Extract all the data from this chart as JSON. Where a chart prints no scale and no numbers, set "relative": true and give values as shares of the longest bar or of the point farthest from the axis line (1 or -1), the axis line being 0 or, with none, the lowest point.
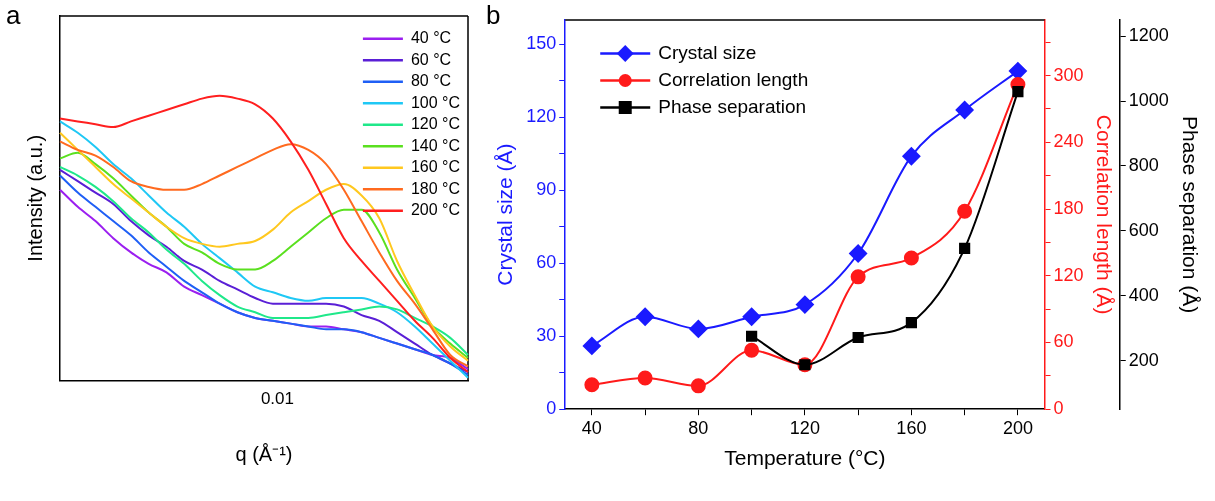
{
  "chart_data": [
    {
      "type": "line",
      "annotations": [
        "a",
        "0.01"
      ],
      "xlabel": "q (Å⁻¹)",
      "ylabel": "Intensity (a.u.)",
      "relative": true,
      "legend": "top right",
      "marker": "none",
      "line_style": "solid",
      "categories": [
        null,
        null,
        null,
        null,
        null,
        null,
        null,
        null,
        null,
        null,
        null,
        null,
        null,
        null,
        null,
        null,
        null,
        null,
        null,
        null,
        null,
        null,
        null,
        null
      ],
      "series": [
        {
          "name": "40 °C",
          "color": "#9b1ff0",
          "values": [
            0.67,
            0.61,
            0.56,
            0.5,
            0.45,
            0.41,
            0.38,
            0.33,
            0.3,
            0.27,
            0.24,
            0.22,
            0.21,
            0.2,
            0.19,
            0.19,
            0.18,
            0.17,
            0.15,
            0.13,
            0.11,
            0.09,
            0.08,
            0.04
          ]
        },
        {
          "name": "60 °C",
          "color": "#5a1fd6",
          "values": [
            0.74,
            0.7,
            0.66,
            0.62,
            0.56,
            0.51,
            0.47,
            0.42,
            0.39,
            0.35,
            0.32,
            0.29,
            0.27,
            0.27,
            0.27,
            0.27,
            0.26,
            0.23,
            0.21,
            0.17,
            0.13,
            0.09,
            0.06,
            0.03
          ]
        },
        {
          "name": "80 °C",
          "color": "#1f5ff5",
          "values": [
            0.72,
            0.66,
            0.61,
            0.56,
            0.51,
            0.45,
            0.4,
            0.35,
            0.31,
            0.27,
            0.24,
            0.22,
            0.21,
            0.2,
            0.19,
            0.18,
            0.18,
            0.17,
            0.15,
            0.13,
            0.11,
            0.09,
            0.06,
            0.02
          ]
        },
        {
          "name": "100 °C",
          "color": "#1fc8f5",
          "values": [
            0.91,
            0.87,
            0.82,
            0.76,
            0.71,
            0.65,
            0.59,
            0.54,
            0.48,
            0.43,
            0.38,
            0.33,
            0.31,
            0.29,
            0.28,
            0.29,
            0.29,
            0.29,
            0.27,
            0.24,
            0.19,
            0.13,
            0.07,
            0.01
          ]
        },
        {
          "name": "120 °C",
          "color": "#1fe88a",
          "values": [
            0.75,
            0.72,
            0.68,
            0.63,
            0.57,
            0.52,
            0.46,
            0.41,
            0.35,
            0.3,
            0.26,
            0.24,
            0.22,
            0.22,
            0.22,
            0.23,
            0.24,
            0.25,
            0.26,
            0.25,
            0.22,
            0.19,
            0.15,
            0.09
          ]
        },
        {
          "name": "140 °C",
          "color": "#5ae01f",
          "values": [
            0.78,
            0.8,
            0.76,
            0.71,
            0.65,
            0.59,
            0.54,
            0.48,
            0.45,
            0.41,
            0.39,
            0.39,
            0.42,
            0.47,
            0.52,
            0.57,
            0.6,
            0.6,
            0.52,
            0.39,
            0.29,
            0.19,
            0.13,
            0.08
          ]
        },
        {
          "name": "160 °C",
          "color": "#ffc81f",
          "values": [
            0.87,
            0.81,
            0.75,
            0.69,
            0.64,
            0.59,
            0.54,
            0.5,
            0.48,
            0.47,
            0.48,
            0.49,
            0.53,
            0.59,
            0.63,
            0.67,
            0.69,
            0.65,
            0.57,
            0.42,
            0.3,
            0.19,
            0.12,
            0.07
          ]
        },
        {
          "name": "180 °C",
          "color": "#ff6a1f",
          "values": [
            0.84,
            0.81,
            0.79,
            0.75,
            0.7,
            0.68,
            0.67,
            0.67,
            0.69,
            0.72,
            0.75,
            0.78,
            0.81,
            0.83,
            0.81,
            0.76,
            0.67,
            0.56,
            0.45,
            0.35,
            0.27,
            0.18,
            0.09,
            0.05
          ]
        },
        {
          "name": "200 °C",
          "color": "#ff1f1f",
          "values": [
            0.92,
            0.91,
            0.9,
            0.89,
            0.91,
            0.93,
            0.95,
            0.97,
            0.99,
            1.0,
            0.99,
            0.97,
            0.92,
            0.84,
            0.74,
            0.62,
            0.5,
            0.42,
            0.35,
            0.28,
            0.21,
            0.15,
            0.08,
            0.03
          ]
        }
      ]
    },
    {
      "type": "line",
      "annotations": [
        "b"
      ],
      "xlabel": "Temperature (°C)",
      "ylabel": "Crystal size (Å)",
      "y2label": "Correlation length (Å)",
      "y3label": "Phase separation (Å)",
      "legend": "top left",
      "line_style": "solid",
      "x": [
        40,
        60,
        80,
        100,
        120,
        140,
        160,
        180,
        200
      ],
      "xlim": [
        30,
        210
      ],
      "xticks": [
        40,
        {
          "value": 60,
          "label": null
        },
        80,
        {
          "value": 100,
          "label": null
        },
        120,
        {
          "value": 140,
          "label": null
        },
        160,
        {
          "value": 180,
          "label": null
        },
        200
      ],
      "ylim": [
        0,
        160
      ],
      "yticks": [
        0,
        {
          "value": 15,
          "label": null
        },
        30,
        {
          "value": 45,
          "label": null
        },
        60,
        {
          "value": 75,
          "label": null
        },
        90,
        {
          "value": 105,
          "label": null
        },
        120,
        {
          "value": 135,
          "label": null
        },
        150
      ],
      "y2lim": [
        0,
        350
      ],
      "y2ticks": [
        0,
        {
          "value": 30,
          "label": null
        },
        60,
        {
          "value": 90,
          "label": null
        },
        120,
        {
          "value": 150,
          "label": null
        },
        180,
        {
          "value": 210,
          "label": null
        },
        240,
        {
          "value": 270,
          "label": null
        },
        300,
        {
          "value": 330,
          "label": null
        }
      ],
      "y3lim": [
        50,
        1250
      ],
      "y3ticks": [
        200,
        400,
        600,
        800,
        1000,
        1200
      ],
      "series": [
        {
          "name": "Crystal size",
          "color": "#1a1aff",
          "marker": "diamond",
          "axis": "y",
          "values": [
            26,
            38,
            33,
            38,
            43,
            64,
            104,
            123,
            139
          ]
        },
        {
          "name": "Correlation length",
          "color": "#ff1a1a",
          "marker": "circle",
          "axis": "y2",
          "values": [
            22,
            28,
            21,
            53,
            40,
            119,
            136,
            178,
            292
          ]
        },
        {
          "name": "Phase separation",
          "color": "#000000",
          "marker": "square",
          "axis": "y3",
          "values": [
            null,
            null,
            null,
            275,
            187,
            271,
            317,
            546,
            1029
          ]
        }
      ]
    }
  ]
}
